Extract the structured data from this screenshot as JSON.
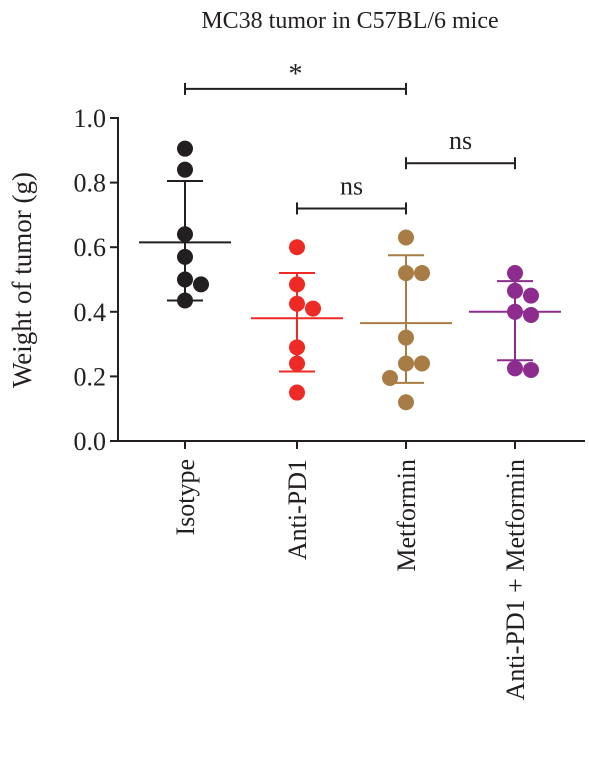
{
  "chart_data": {
    "type": "scatter",
    "title": "MC38 tumor in C57BL/6 mice",
    "ylabel": "Weight of tumor (g)",
    "xlabel": "",
    "ylim": [
      0,
      1.0
    ],
    "yticks": [
      "0.0",
      "0.2",
      "0.4",
      "0.6",
      "0.8",
      "1.0"
    ],
    "categories": [
      "Isotype",
      "Anti-PD1",
      "Metformin",
      "Anti-PD1 + Metformin"
    ],
    "grid": false,
    "series": [
      {
        "category": "Isotype",
        "color": "#231f20",
        "points": [
          0.905,
          0.84,
          0.64,
          0.57,
          0.5,
          0.485,
          0.435
        ],
        "mean": 0.615,
        "sd_upper": 0.805,
        "sd_lower": 0.435
      },
      {
        "category": "Anti-PD1",
        "color": "#ee2a24",
        "points": [
          0.6,
          0.485,
          0.425,
          0.41,
          0.29,
          0.24,
          0.15
        ],
        "mean": 0.38,
        "sd_upper": 0.52,
        "sd_lower": 0.215
      },
      {
        "category": "Metformin",
        "color": "#a87c45",
        "points": [
          0.63,
          0.52,
          0.52,
          0.32,
          0.24,
          0.24,
          0.195,
          0.12
        ],
        "mean": 0.365,
        "sd_upper": 0.575,
        "sd_lower": 0.18
      },
      {
        "category": "Anti-PD1 + Metformin",
        "color": "#8e2b8e",
        "points": [
          0.52,
          0.465,
          0.45,
          0.4,
          0.39,
          0.225,
          0.22
        ],
        "mean": 0.4,
        "sd_upper": 0.495,
        "sd_lower": 0.25
      }
    ],
    "significance": [
      {
        "from": "Isotype",
        "to": "Metformin",
        "label": "*",
        "y": 1.09
      },
      {
        "from": "Anti-PD1",
        "to": "Metformin",
        "label": "ns",
        "y": 0.72
      },
      {
        "from": "Metformin",
        "to": "Anti-PD1 + Metformin",
        "label": "ns",
        "y": 0.86
      }
    ]
  }
}
